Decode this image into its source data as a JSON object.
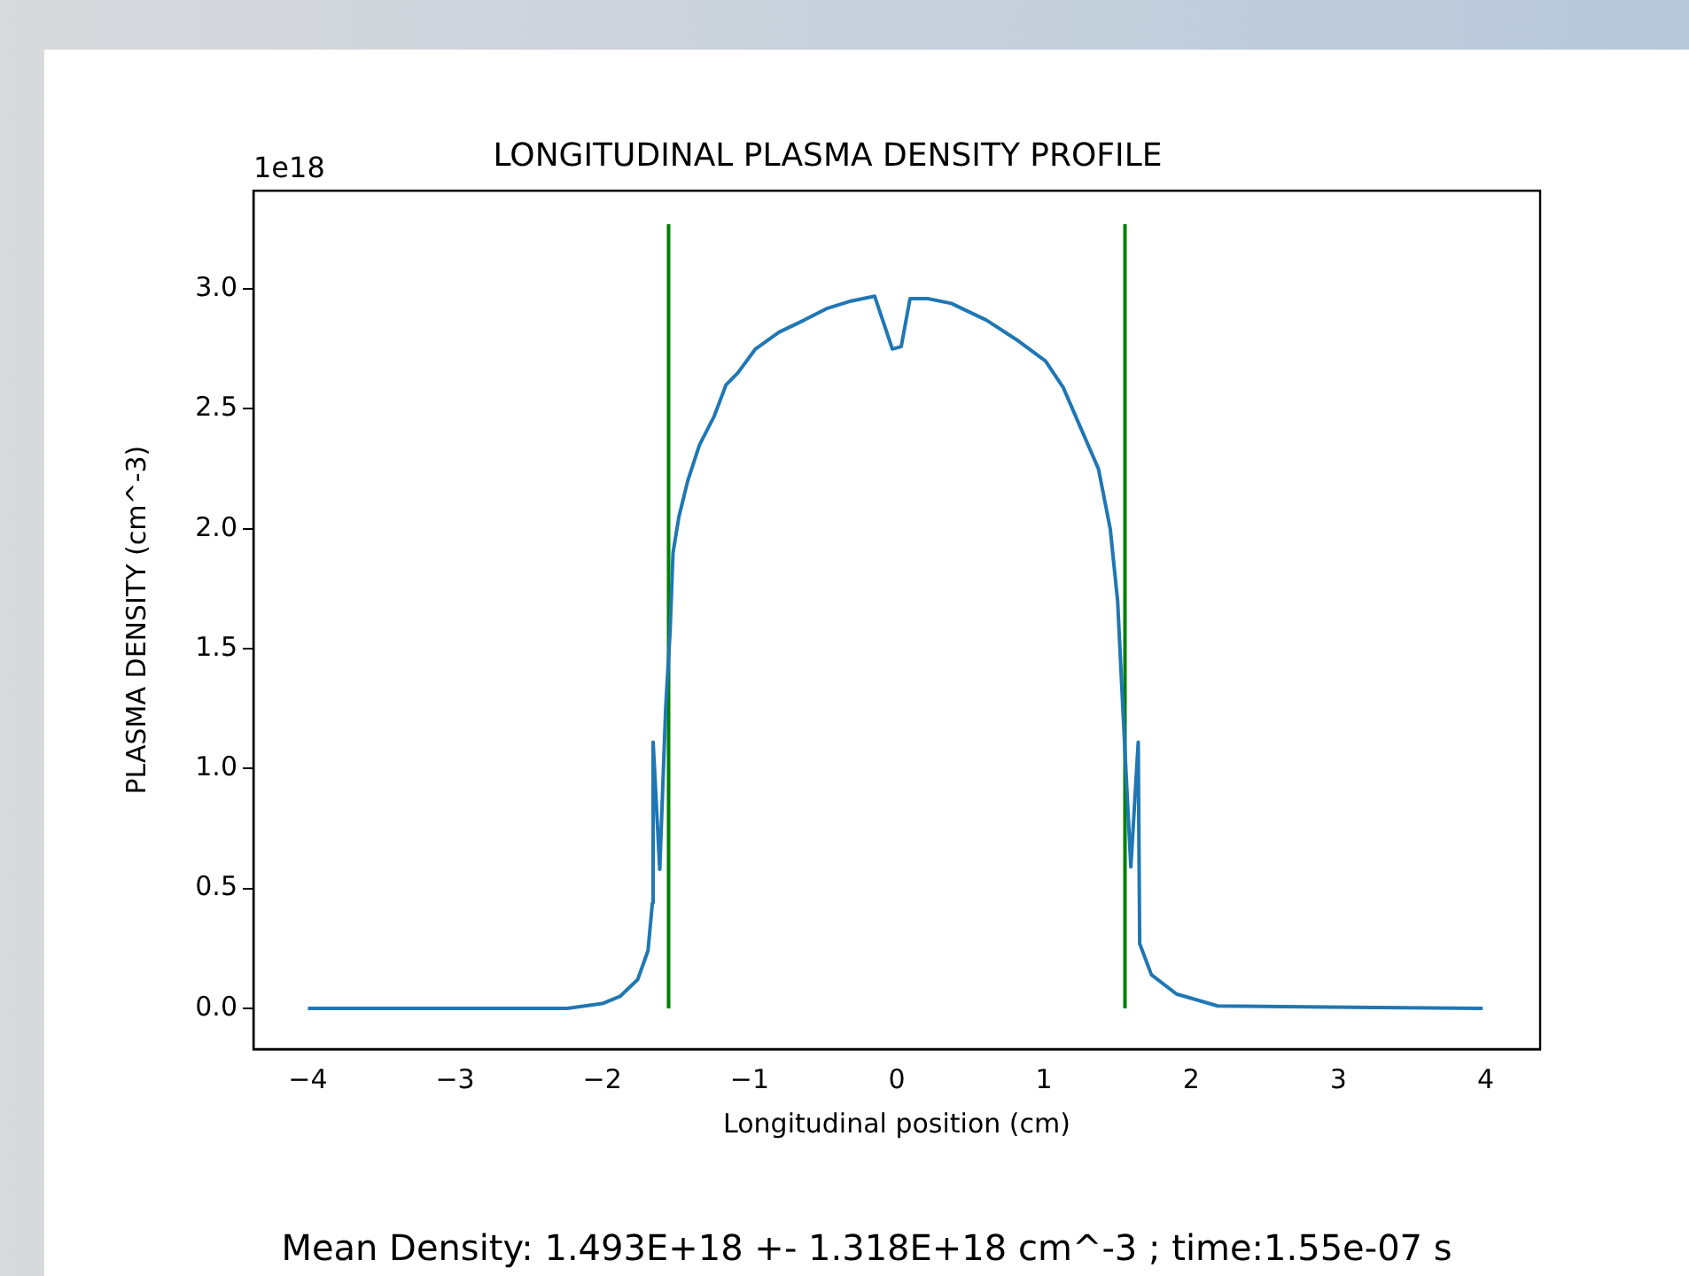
{
  "chart_data": {
    "type": "line",
    "title": "LONGITUDINAL PLASMA DENSITY PROFILE",
    "xlabel": "Longitudinal position (cm)",
    "ylabel": "PLASMA DENSITY (cm^-3)",
    "annotations": [
      "1e18",
      "Mean Density: 1.493E+18 +- 1.318E+18 cm^-3 ; time:1.55e-07 s"
    ],
    "xlim": [
      -4.37,
      4.37
    ],
    "xticks": [
      -4,
      -3,
      -2,
      -1,
      0,
      1,
      2,
      3,
      4
    ],
    "ylim": [
      -0.17,
      3.41
    ],
    "yticks": [
      {
        "value": 0,
        "label": "0.0"
      },
      0.5,
      {
        "value": 1,
        "label": "1.0"
      },
      1.5,
      {
        "value": 2,
        "label": "2.0"
      },
      2.5,
      {
        "value": 3,
        "label": "3.0"
      }
    ],
    "grid": false,
    "legend": false,
    "marker": "none",
    "line_style": "solid",
    "series": [
      {
        "color": "#1f77b4",
        "x": [
          -4.0,
          -2.24,
          -2.0,
          -1.88,
          -1.76,
          -1.69,
          -1.66,
          -1.655,
          -1.61,
          -1.57,
          -1.54,
          -1.52,
          -1.48,
          -1.42,
          -1.34,
          -1.24,
          -1.16,
          -1.08,
          -0.96,
          -0.8,
          -0.63,
          -0.47,
          -0.31,
          -0.15,
          -0.03,
          0.03,
          0.09,
          0.21,
          0.37,
          0.61,
          0.81,
          1.01,
          1.13,
          1.25,
          1.37,
          1.45,
          1.5,
          1.53,
          1.56,
          1.59,
          1.64,
          1.65,
          1.73,
          1.9,
          2.18,
          3.98
        ],
        "values": [
          0,
          0,
          0.02,
          0.05,
          0.12,
          0.24,
          0.44,
          1.11,
          0.58,
          1.25,
          1.57,
          1.9,
          2.05,
          2.2,
          2.35,
          2.47,
          2.6,
          2.65,
          2.75,
          2.82,
          2.87,
          2.92,
          2.95,
          2.97,
          2.75,
          2.76,
          2.96,
          2.96,
          2.94,
          2.87,
          2.79,
          2.7,
          2.59,
          2.42,
          2.25,
          2.0,
          1.7,
          1.32,
          0.95,
          0.59,
          1.11,
          0.27,
          0.14,
          0.06,
          0.01,
          0
        ]
      },
      {
        "color": "#008000",
        "x": [
          -1.55,
          -1.55
        ],
        "values": [
          0,
          3.27
        ]
      },
      {
        "color": "#008000",
        "x": [
          1.55,
          1.55
        ],
        "values": [
          0,
          3.27
        ]
      }
    ]
  }
}
